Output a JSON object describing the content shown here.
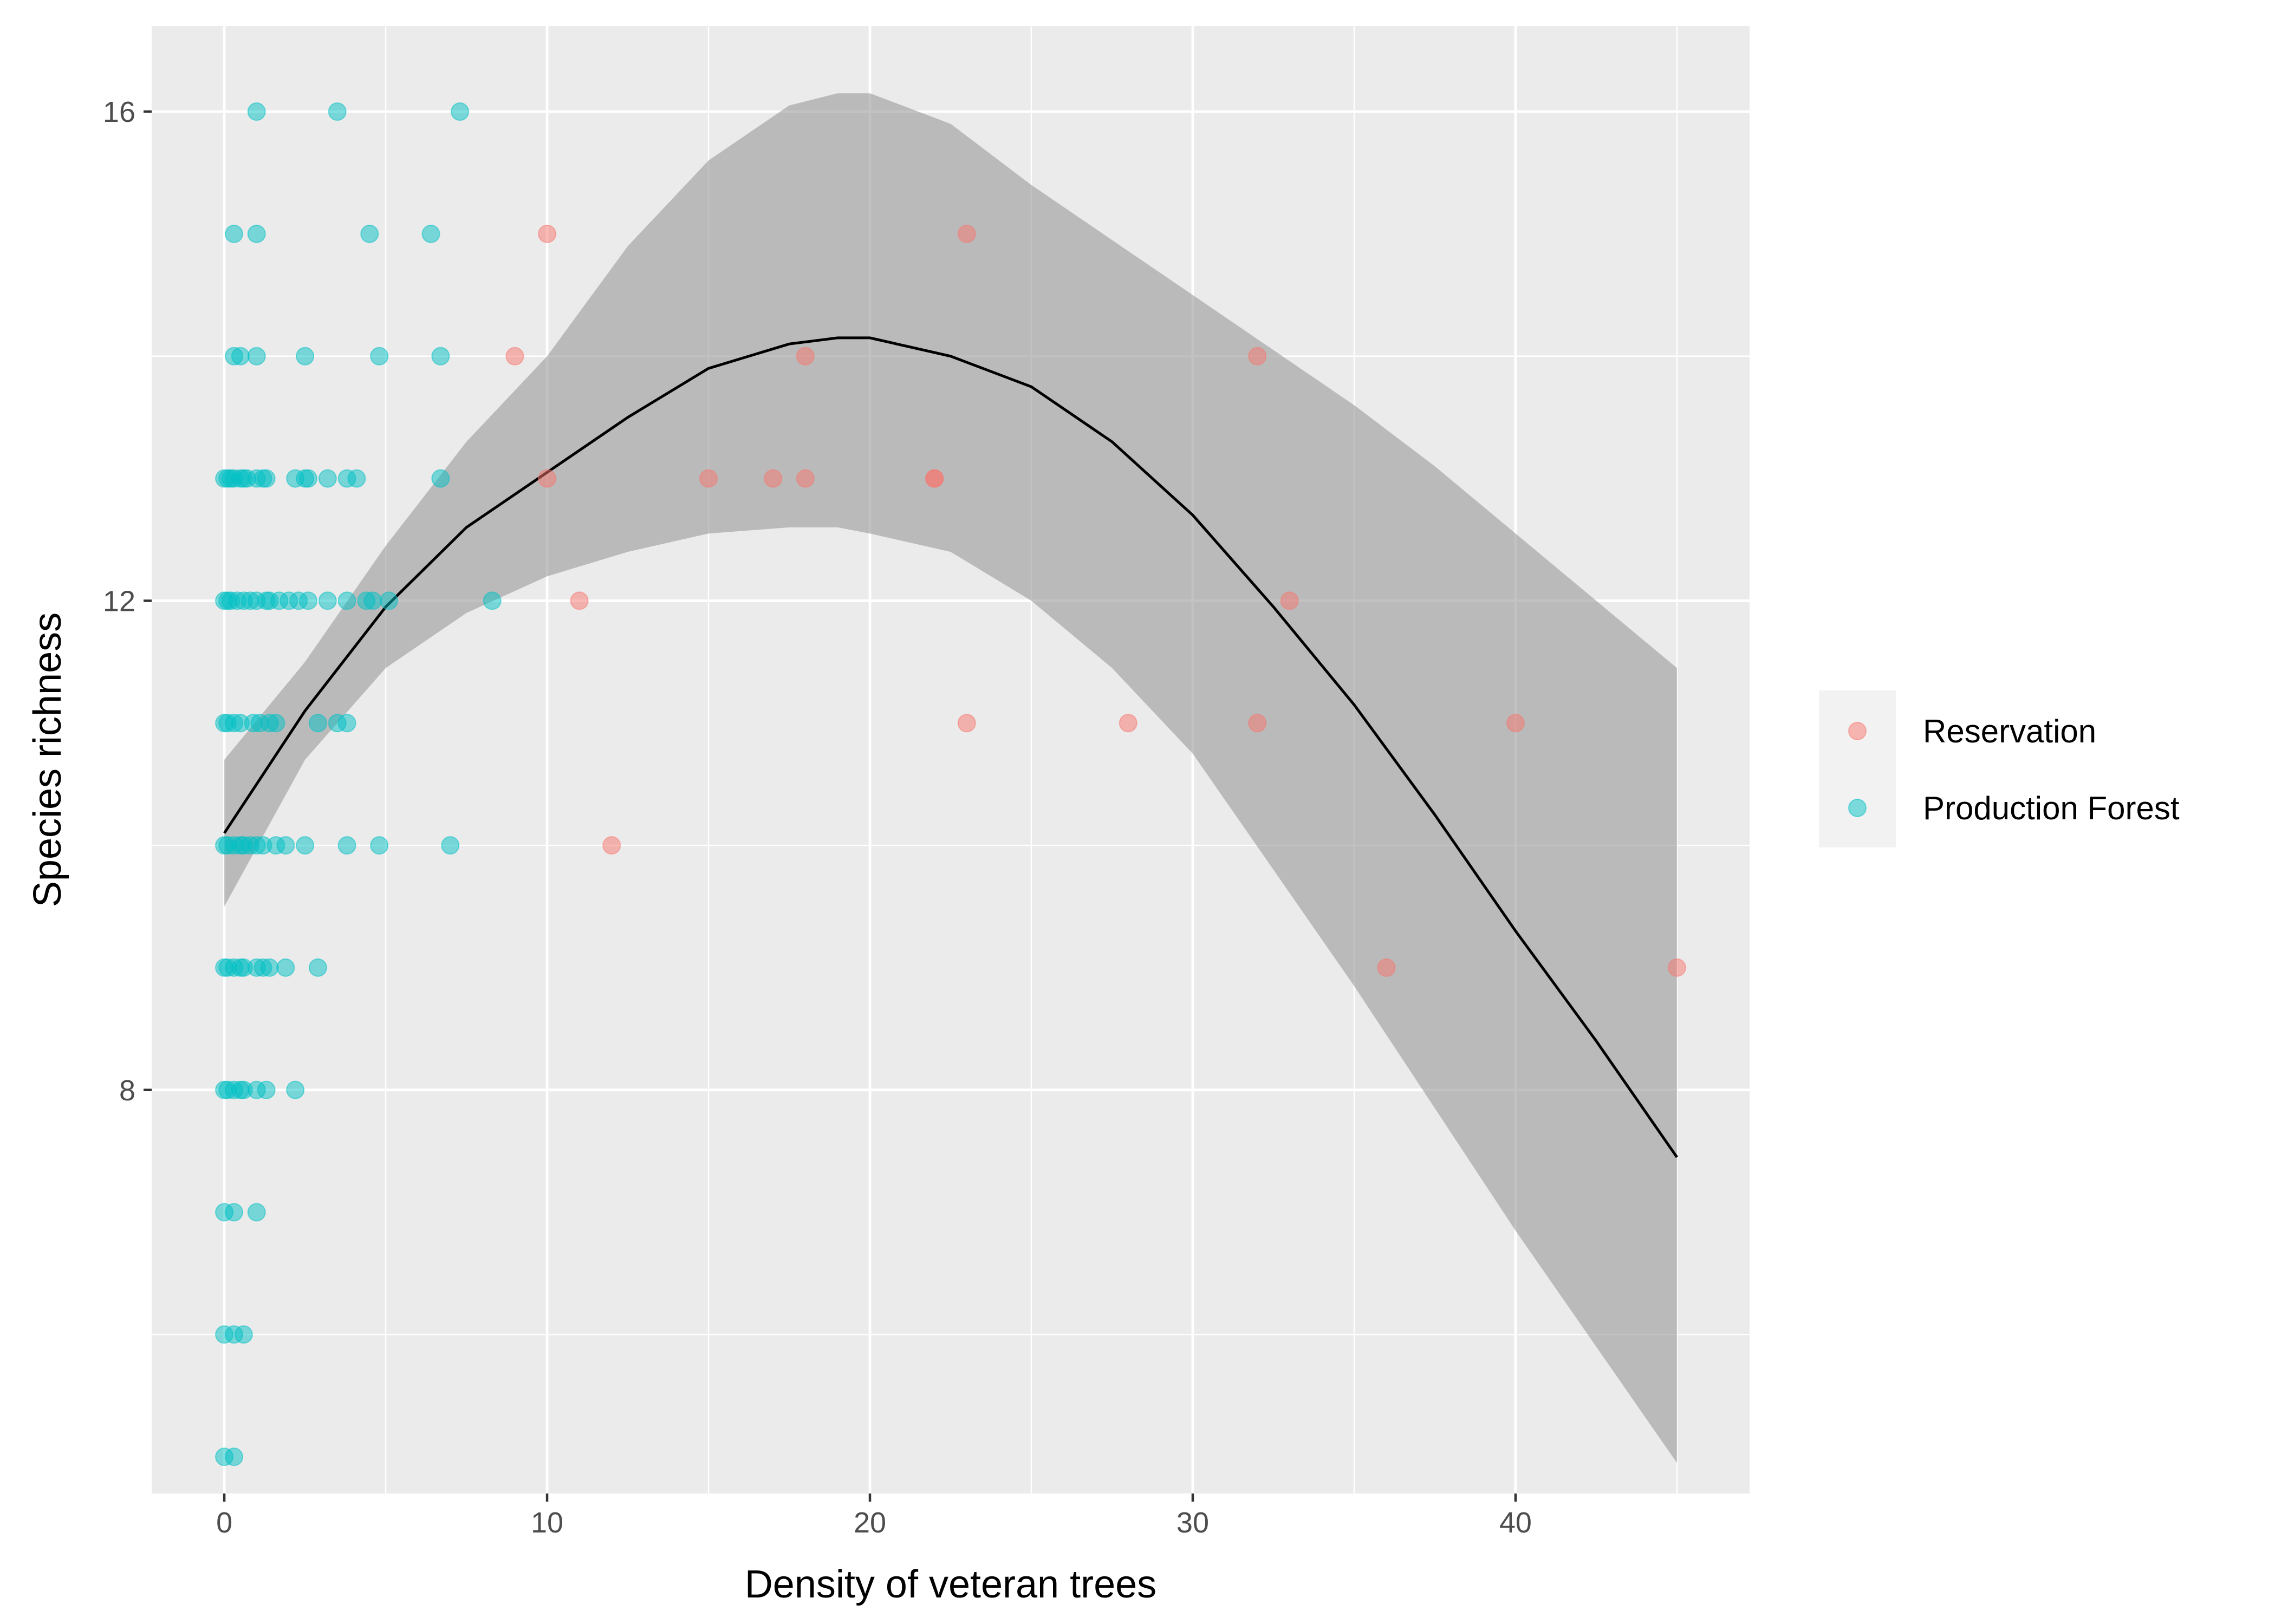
{
  "chart_data": {
    "type": "scatter",
    "xlabel": "Density of veteran trees",
    "ylabel": "Species richness",
    "xlim": [
      -2.25,
      47.25
    ],
    "ylim": [
      4.7,
      16.7
    ],
    "x_ticks": [
      0,
      10,
      20,
      30,
      40
    ],
    "y_ticks": [
      8,
      12,
      16
    ],
    "x_tick_labels": [
      "0",
      "10",
      "20",
      "30",
      "40"
    ],
    "y_tick_labels": [
      "8",
      "12",
      "16"
    ],
    "grid": true,
    "legend_position": "right",
    "series": [
      {
        "name": "Reservation",
        "color": "#F8766D",
        "points": [
          [
            10,
            15
          ],
          [
            23,
            15
          ],
          [
            9,
            14
          ],
          [
            18,
            14
          ],
          [
            32,
            14
          ],
          [
            10,
            13
          ],
          [
            15,
            13
          ],
          [
            17,
            13
          ],
          [
            18,
            13
          ],
          [
            22,
            13
          ],
          [
            22,
            13
          ],
          [
            11,
            12
          ],
          [
            33,
            12
          ],
          [
            23,
            11
          ],
          [
            28,
            11
          ],
          [
            32,
            11
          ],
          [
            40,
            11
          ],
          [
            12,
            10
          ],
          [
            36,
            9
          ],
          [
            45,
            9
          ]
        ]
      },
      {
        "name": "Production Forest",
        "color": "#00BFC4",
        "points": [
          [
            1,
            16
          ],
          [
            3.5,
            16
          ],
          [
            7.3,
            16
          ],
          [
            0.3,
            15
          ],
          [
            1,
            15
          ],
          [
            4.5,
            15
          ],
          [
            6.4,
            15
          ],
          [
            0.3,
            14
          ],
          [
            0.5,
            14
          ],
          [
            1,
            14
          ],
          [
            2.5,
            14
          ],
          [
            4.8,
            14
          ],
          [
            6.7,
            14
          ],
          [
            0,
            13
          ],
          [
            0.1,
            13
          ],
          [
            0.2,
            13
          ],
          [
            0.3,
            13
          ],
          [
            0.5,
            13
          ],
          [
            0.6,
            13
          ],
          [
            0.7,
            13
          ],
          [
            1,
            13
          ],
          [
            1.2,
            13
          ],
          [
            1.3,
            13
          ],
          [
            2.2,
            13
          ],
          [
            2.5,
            13
          ],
          [
            2.6,
            13
          ],
          [
            3.2,
            13
          ],
          [
            3.8,
            13
          ],
          [
            4.1,
            13
          ],
          [
            6.7,
            13
          ],
          [
            0,
            12
          ],
          [
            0.1,
            12
          ],
          [
            0.2,
            12
          ],
          [
            0.4,
            12
          ],
          [
            0.6,
            12
          ],
          [
            0.8,
            12
          ],
          [
            1,
            12
          ],
          [
            1.3,
            12
          ],
          [
            1.4,
            12
          ],
          [
            1.7,
            12
          ],
          [
            2,
            12
          ],
          [
            2.3,
            12
          ],
          [
            2.6,
            12
          ],
          [
            3.2,
            12
          ],
          [
            3.8,
            12
          ],
          [
            4.4,
            12
          ],
          [
            4.6,
            12
          ],
          [
            5.1,
            12
          ],
          [
            8.3,
            12
          ],
          [
            0,
            11
          ],
          [
            0.1,
            11
          ],
          [
            0.3,
            11
          ],
          [
            0.5,
            11
          ],
          [
            0.9,
            11
          ],
          [
            1.1,
            11
          ],
          [
            1.4,
            11
          ],
          [
            1.6,
            11
          ],
          [
            2.9,
            11
          ],
          [
            3.5,
            11
          ],
          [
            3.8,
            11
          ],
          [
            0,
            10
          ],
          [
            0.1,
            10
          ],
          [
            0.3,
            10
          ],
          [
            0.5,
            10
          ],
          [
            0.6,
            10
          ],
          [
            0.8,
            10
          ],
          [
            1,
            10
          ],
          [
            1.2,
            10
          ],
          [
            1.6,
            10
          ],
          [
            1.9,
            10
          ],
          [
            2.5,
            10
          ],
          [
            3.8,
            10
          ],
          [
            4.8,
            10
          ],
          [
            7,
            10
          ],
          [
            0,
            9
          ],
          [
            0.1,
            9
          ],
          [
            0.3,
            9
          ],
          [
            0.5,
            9
          ],
          [
            0.6,
            9
          ],
          [
            1,
            9
          ],
          [
            1.2,
            9
          ],
          [
            1.4,
            9
          ],
          [
            1.9,
            9
          ],
          [
            2.9,
            9
          ],
          [
            0,
            8
          ],
          [
            0.1,
            8
          ],
          [
            0.3,
            8
          ],
          [
            0.5,
            8
          ],
          [
            0.6,
            8
          ],
          [
            1,
            8
          ],
          [
            1.3,
            8
          ],
          [
            2.2,
            8
          ],
          [
            0,
            7
          ],
          [
            0.3,
            7
          ],
          [
            1,
            7
          ],
          [
            0,
            6
          ],
          [
            0.3,
            6
          ],
          [
            0.6,
            6
          ],
          [
            0,
            5
          ],
          [
            0.3,
            5
          ]
        ]
      }
    ],
    "fit": {
      "color": "#000000",
      "band_color": "#999999",
      "x": [
        0,
        2.5,
        5,
        7.5,
        10,
        12.5,
        15,
        17.5,
        19,
        20,
        22.5,
        25,
        27.5,
        30,
        32.5,
        35,
        37.5,
        40,
        42.5,
        45
      ],
      "y": [
        10.1,
        11.1,
        11.95,
        12.6,
        13.05,
        13.5,
        13.9,
        14.1,
        14.15,
        14.15,
        14.0,
        13.75,
        13.3,
        12.7,
        11.95,
        11.15,
        10.25,
        9.3,
        8.4,
        7.45
      ],
      "lower": [
        9.5,
        10.7,
        11.45,
        11.9,
        12.2,
        12.4,
        12.55,
        12.6,
        12.6,
        12.55,
        12.4,
        12.0,
        11.45,
        10.75,
        9.8,
        8.85,
        7.85,
        6.85,
        5.9,
        4.95
      ],
      "upper": [
        10.7,
        11.5,
        12.45,
        13.3,
        14.0,
        14.9,
        15.6,
        16.05,
        16.15,
        16.15,
        15.9,
        15.4,
        14.95,
        14.5,
        14.05,
        13.6,
        13.1,
        12.55,
        12.0,
        11.45
      ]
    }
  }
}
